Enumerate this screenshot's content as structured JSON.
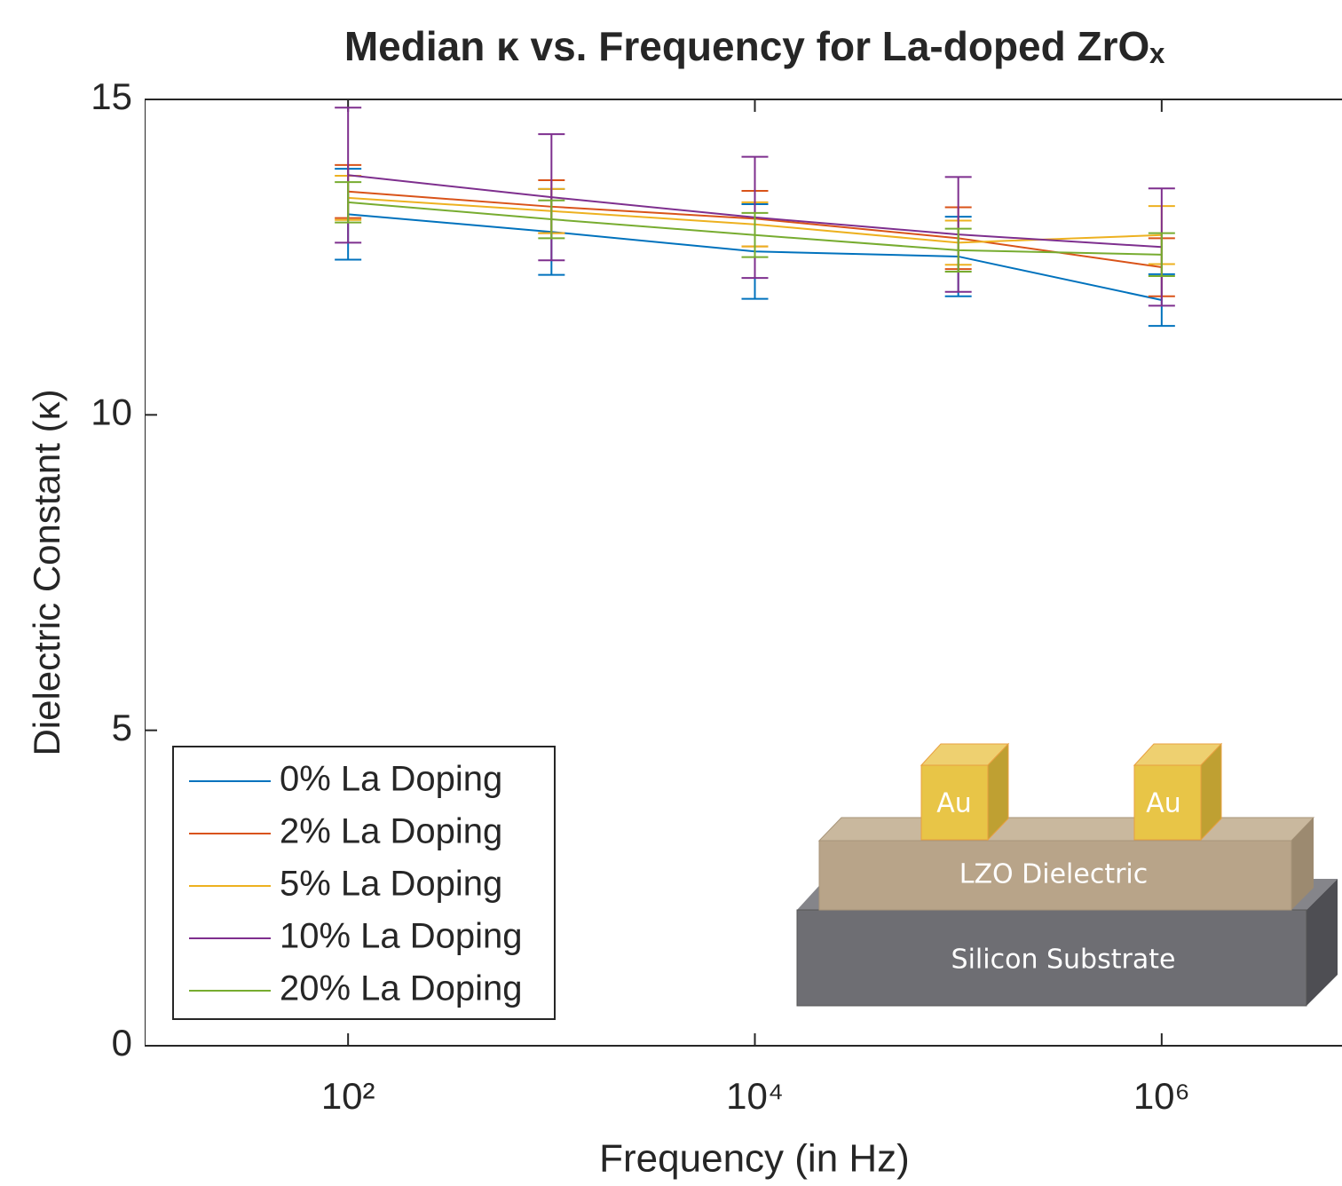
{
  "chart_data": {
    "type": "line",
    "title": "Median κ vs. Frequency for La-doped ZrOₓ",
    "x_label": "Frequency (in Hz)",
    "y_label": "Dielectric Constant (κ)",
    "x": [
      100,
      1000,
      10000,
      100000,
      1000000
    ],
    "log_x": true,
    "xlim": [
      10,
      10000000
    ],
    "xticks": [
      {
        "value": 100,
        "label": "10²"
      },
      {
        "value": 10000,
        "label": "10⁴"
      },
      {
        "value": 1000000,
        "label": "10⁶"
      }
    ],
    "ylim": [
      0,
      15
    ],
    "yticks": [
      0,
      5,
      10,
      15
    ],
    "grid": false,
    "legend": "lower-left",
    "series": [
      {
        "name": "0% La Doping",
        "color": "#0072BD",
        "values": [
          13.18,
          12.9,
          12.59,
          12.51,
          11.82
        ],
        "errors": [
          0.72,
          0.68,
          0.75,
          0.63,
          0.41
        ]
      },
      {
        "name": "2% La Doping",
        "color": "#D95319",
        "values": [
          13.54,
          13.3,
          13.11,
          12.8,
          12.34
        ],
        "errors": [
          0.42,
          0.42,
          0.44,
          0.49,
          0.46
        ]
      },
      {
        "name": "5% La Doping",
        "color": "#EDB120",
        "values": [
          13.44,
          13.23,
          13.02,
          12.73,
          12.85
        ],
        "errors": [
          0.35,
          0.35,
          0.35,
          0.35,
          0.46
        ]
      },
      {
        "name": "10% La Doping",
        "color": "#7E2F8E",
        "values": [
          13.8,
          13.45,
          13.13,
          12.86,
          12.66
        ],
        "errors": [
          1.07,
          1.0,
          0.96,
          0.91,
          0.93
        ]
      },
      {
        "name": "20% La Doping",
        "color": "#77AC30",
        "values": [
          13.37,
          13.1,
          12.85,
          12.61,
          12.54
        ],
        "errors": [
          0.32,
          0.3,
          0.35,
          0.34,
          0.34
        ]
      }
    ],
    "annotations": [
      "Au",
      "Au",
      "LZO Dielectric",
      "Silicon Substrate"
    ]
  }
}
